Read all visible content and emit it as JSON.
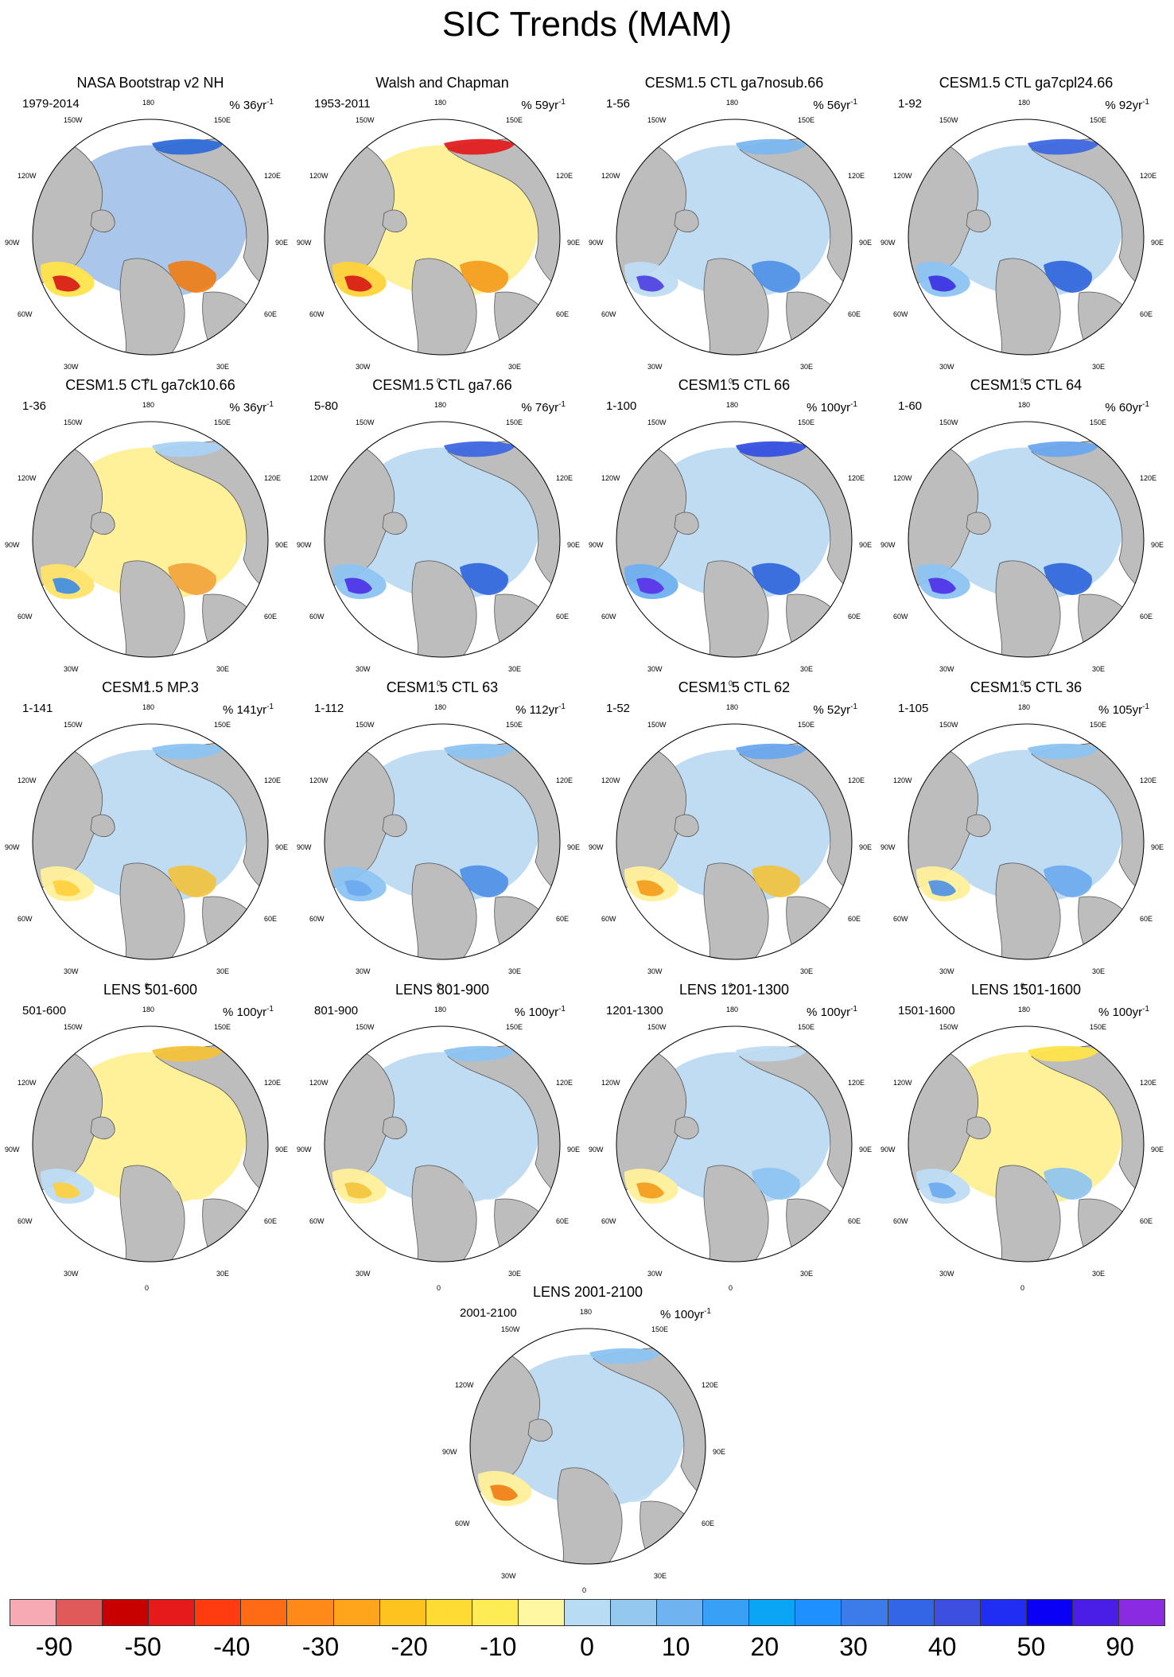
{
  "figure": {
    "title": "SIC Trends (MAM)",
    "unit_prefix": "% ",
    "unit_suffix": "yr",
    "unit_exponent": "-1"
  },
  "map_labels": {
    "top": "180",
    "top_left": "150W",
    "top_right": "150E",
    "upper_left": "120W",
    "upper_right": "120E",
    "left": "90W",
    "right": "90E",
    "lower_left": "60W",
    "lower_right": "60E",
    "bottom_left": "30W",
    "bottom_right": "30E",
    "bottom": "0"
  },
  "panels": [
    {
      "name": "NASA Bootstrap v2 NH",
      "period": "1979-2014",
      "scale": "36",
      "colors": {
        "ring": "#aac6ea",
        "shelf": [
          "#ffe34a",
          "#f07b12"
        ],
        "hot": "#d61515",
        "east": "#2f6bd8"
      }
    },
    {
      "name": "Walsh and Chapman",
      "period": "1953-2011",
      "scale": "59",
      "colors": {
        "ring": "#fff09a",
        "shelf": [
          "#ffd33a",
          "#f39a1a"
        ],
        "hot": "#d61515",
        "east": "#e11d1d"
      }
    },
    {
      "name": "CESM1.5 CTL ga7nosub.66",
      "period": "1-56",
      "scale": "56",
      "colors": {
        "ring": "#bfdcf3",
        "shelf": [
          "#bfdcf3",
          "#4d8fe6"
        ],
        "hot": "#4d3de0",
        "east": "#7ab7ef"
      }
    },
    {
      "name": "CESM1.5 CTL ga7cpl24.66",
      "period": "1-92",
      "scale": "92",
      "colors": {
        "ring": "#bfdcf3",
        "shelf": [
          "#8cc3f2",
          "#2c63dc"
        ],
        "hot": "#3a2ee0",
        "east": "#3f68e0"
      }
    },
    {
      "name": "CESM1.5 CTL ga7ck10.66",
      "period": "1-36",
      "scale": "36",
      "colors": {
        "ring": "#fff09a",
        "shelf": [
          "#ffe36a",
          "#f3a23a"
        ],
        "hot": "#3b8be6",
        "east": "#a9d2f4"
      }
    },
    {
      "name": "CESM1.5 CTL ga7.66",
      "period": "5-80",
      "scale": "76",
      "colors": {
        "ring": "#bfdcf3",
        "shelf": [
          "#8cc3f2",
          "#2c63dc"
        ],
        "hot": "#4b2ee8",
        "east": "#3f68e0"
      }
    },
    {
      "name": "CESM1.5 CTL 66",
      "period": "1-100",
      "scale": "100",
      "colors": {
        "ring": "#bfdcf3",
        "shelf": [
          "#6fb0f0",
          "#2c63dc"
        ],
        "hot": "#5a2ee8",
        "east": "#3550e0"
      }
    },
    {
      "name": "CESM1.5 CTL 64",
      "period": "1-60",
      "scale": "60",
      "colors": {
        "ring": "#bfdcf3",
        "shelf": [
          "#8cc3f2",
          "#2c63dc"
        ],
        "hot": "#4b2ee8",
        "east": "#6aa8ee"
      }
    },
    {
      "name": "CESM1.5 MP.3",
      "period": "1-141",
      "scale": "141",
      "colors": {
        "ring": "#bfdcf3",
        "shelf": [
          "#fff09a",
          "#f3c23a"
        ],
        "hot": "#ffcf3a",
        "east": "#8cc3f2"
      }
    },
    {
      "name": "CESM1.5 CTL 63",
      "period": "1-112",
      "scale": "112",
      "colors": {
        "ring": "#bfdcf3",
        "shelf": [
          "#8cc3f2",
          "#4d8fe6"
        ],
        "hot": "#6aa8ee",
        "east": "#8cc3f2"
      }
    },
    {
      "name": "CESM1.5 CTL 62",
      "period": "1-52",
      "scale": "52",
      "colors": {
        "ring": "#bfdcf3",
        "shelf": [
          "#fff09a",
          "#f3c23a"
        ],
        "hot": "#f39a1a",
        "east": "#6aa8ee"
      }
    },
    {
      "name": "CESM1.5 CTL 36",
      "period": "1-105",
      "scale": "105",
      "colors": {
        "ring": "#bfdcf3",
        "shelf": [
          "#fff09a",
          "#6aa8ee"
        ],
        "hot": "#4d8fe6",
        "east": "#8cc3f2"
      }
    },
    {
      "name": "LENS 501-600",
      "period": "501-600",
      "scale": "100",
      "colors": {
        "ring": "#fff09a",
        "shelf": [
          "#bfdcf3",
          "#fff09a"
        ],
        "hot": "#ffcf3a",
        "east": "#f3c23a"
      }
    },
    {
      "name": "LENS 801-900",
      "period": "801-900",
      "scale": "100",
      "colors": {
        "ring": "#bfdcf3",
        "shelf": [
          "#fff09a",
          "#bfdcf3"
        ],
        "hot": "#f3c23a",
        "east": "#8cc3f2"
      }
    },
    {
      "name": "LENS 1201-1300",
      "period": "1201-1300",
      "scale": "100",
      "colors": {
        "ring": "#bfdcf3",
        "shelf": [
          "#fff09a",
          "#8cc3f2"
        ],
        "hot": "#f39a1a",
        "east": "#bfdcf3"
      }
    },
    {
      "name": "LENS 1501-1600",
      "period": "1501-1600",
      "scale": "100",
      "colors": {
        "ring": "#fff09a",
        "shelf": [
          "#bfdcf3",
          "#8cc3f2"
        ],
        "hot": "#6aa8ee",
        "east": "#ffe34a"
      }
    },
    {
      "name": "LENS 2001-2100",
      "period": "2001-2100",
      "scale": "100",
      "colors": {
        "ring": "#bfdcf3",
        "shelf": [
          "#fff09a",
          "#bfdcf3"
        ],
        "hot": "#f07b12",
        "east": "#8cc3f2"
      }
    }
  ],
  "colorbar": {
    "colors": [
      "#f7a9b4",
      "#e05a5a",
      "#c90000",
      "#e61a1a",
      "#ff3b0f",
      "#ff6a14",
      "#ff8a1a",
      "#ffa51c",
      "#ffc31f",
      "#ffdb33",
      "#ffec55",
      "#fff7a1",
      "#b8dcf3",
      "#94c8ef",
      "#6fb4f0",
      "#38a0f5",
      "#0aa5f5",
      "#1e90ff",
      "#3b7bea",
      "#3366e6",
      "#3d4fe0",
      "#1f2ef2",
      "#0a00f5",
      "#4b1ee8",
      "#8a2be2"
    ],
    "tick_labels": [
      "-90",
      "-50",
      "-40",
      "-30",
      "-20",
      "-10",
      "0",
      "10",
      "20",
      "30",
      "40",
      "50",
      "90"
    ]
  }
}
